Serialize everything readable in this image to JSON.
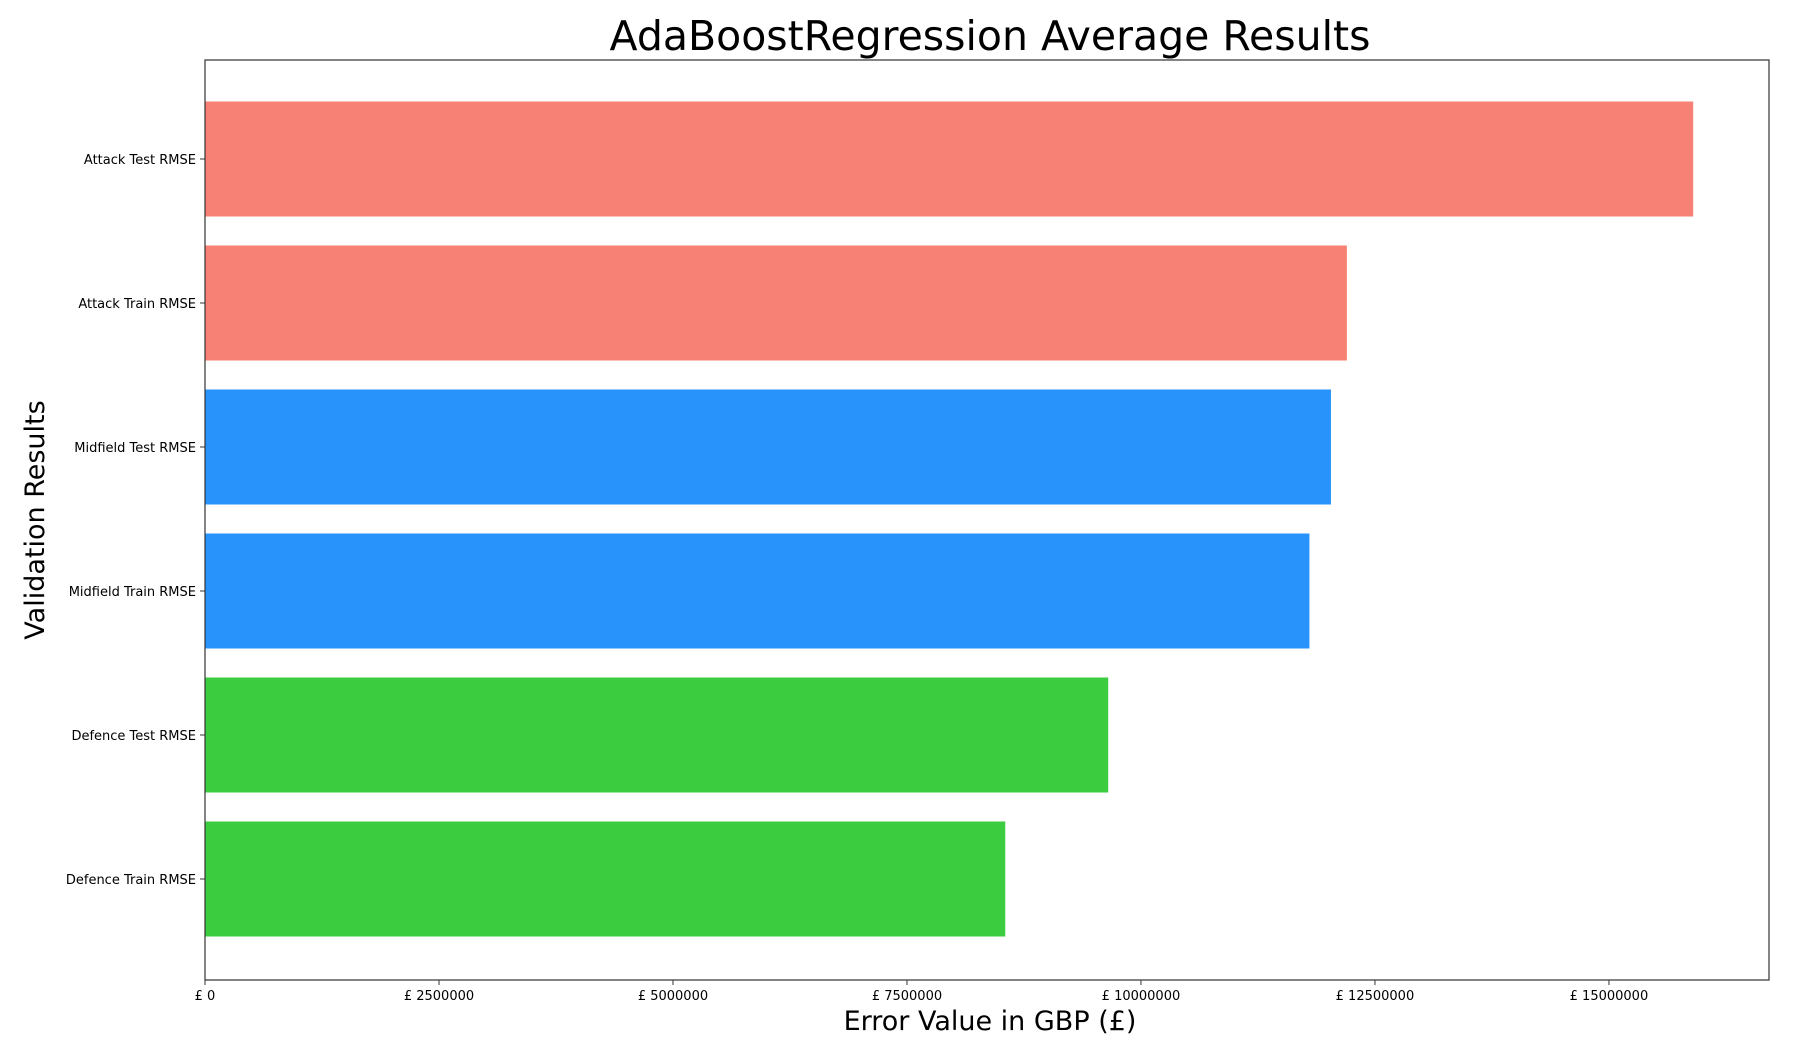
{
  "chart_data": {
    "type": "bar",
    "orientation": "horizontal",
    "title": "AdaBoostRegression Average Results",
    "xlabel": "Error Value in GBP (£)",
    "ylabel": "Validation Results",
    "categories": [
      "Attack Test RMSE",
      "Attack Train RMSE",
      "Midfield Test RMSE",
      "Midfield Train RMSE",
      "Defence Test RMSE",
      "Defence Train RMSE"
    ],
    "values": [
      15900000,
      12200000,
      12030000,
      11800000,
      9650000,
      8550000
    ],
    "colors": [
      "#f78174",
      "#f78174",
      "#2893fb",
      "#2893fb",
      "#3ccc40",
      "#3ccc40"
    ],
    "xlim": [
      0,
      16710000
    ],
    "xticks": [
      0,
      2500000,
      5000000,
      7500000,
      10000000,
      12500000,
      15000000
    ],
    "xtick_labels": [
      "£ 0",
      "£ 2500000",
      "£ 5000000",
      "£ 7500000",
      "£ 10000000",
      "£ 12500000",
      "£ 15000000"
    ],
    "grid": false
  }
}
